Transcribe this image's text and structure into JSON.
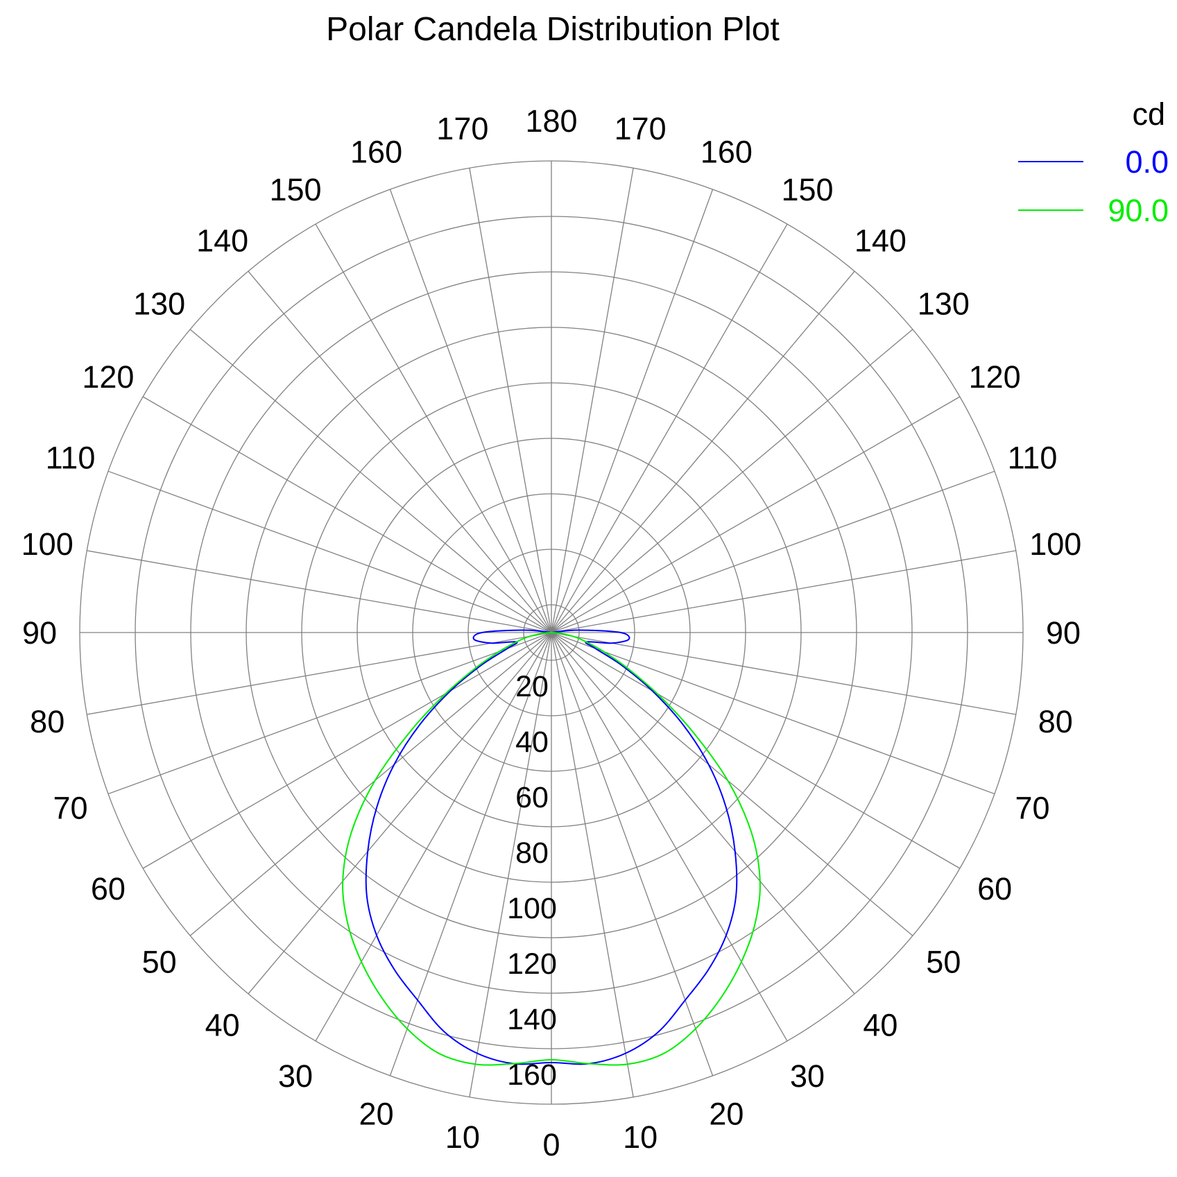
{
  "chart_data": {
    "type": "polar",
    "title": "Polar Candela Distribution Plot",
    "radial_unit": "cd",
    "radial_range": [
      0,
      160
    ],
    "radial_ticks": [
      20,
      40,
      60,
      80,
      100,
      120,
      140,
      160
    ],
    "radial_tick_labels": [
      "20",
      "40",
      "60",
      "80",
      "100",
      "120",
      "140",
      "160"
    ],
    "angle_step_deg": 10,
    "angle_labels_left": [
      "0",
      "10",
      "20",
      "30",
      "40",
      "50",
      "60",
      "70",
      "80",
      "90",
      "100",
      "110",
      "120",
      "130",
      "140",
      "150",
      "160",
      "170",
      "180"
    ],
    "angle_labels_right": [
      "10",
      "20",
      "30",
      "40",
      "50",
      "60",
      "70",
      "80",
      "90",
      "100",
      "110",
      "120",
      "130",
      "140",
      "150",
      "160",
      "170"
    ],
    "grid": true,
    "legend_position": "top-right",
    "series": [
      {
        "name": "0.0",
        "color": "#0000ff",
        "angles": [
          0,
          5,
          10,
          15,
          20,
          25,
          30,
          35,
          40,
          45,
          50,
          55,
          60,
          65,
          70,
          75,
          80,
          85,
          90,
          95,
          180
        ],
        "values": [
          155,
          156,
          154,
          149,
          141,
          134,
          126,
          116,
          103,
          89,
          74,
          58,
          42,
          28,
          17,
          13,
          22,
          28,
          25,
          10,
          0
        ]
      },
      {
        "name": "90.0",
        "color": "#00ee00",
        "angles": [
          0,
          5,
          10,
          15,
          20,
          25,
          30,
          35,
          40,
          45,
          50,
          55,
          60,
          65,
          70,
          75,
          80,
          85,
          90,
          180
        ],
        "values": [
          154,
          156,
          158,
          157,
          152,
          145,
          137,
          128,
          117,
          102,
          83,
          62,
          44,
          30,
          20,
          13,
          8,
          3,
          0,
          0
        ]
      }
    ]
  }
}
